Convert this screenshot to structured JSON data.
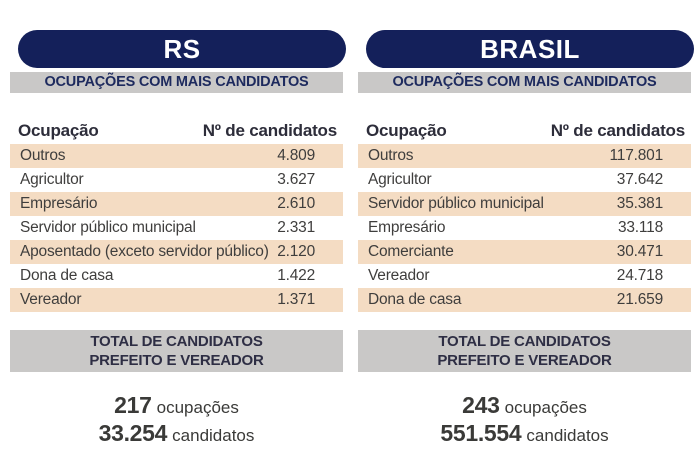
{
  "colors": {
    "navy": "#14205a",
    "bar_gray": "#c9c8c7",
    "stripe_peach": "#f4dcc3",
    "bar_text_navy": "#1d2a5e",
    "text_dark": "#3f3e3d"
  },
  "columns": [
    {
      "region": "RS",
      "section_title": "OCUPAÇÕES COM MAIS CANDIDATOS",
      "table": {
        "header_occupation": "Ocupação",
        "header_count": "Nº de candidatos",
        "rows": [
          {
            "occupation": "Outros",
            "candidates": "4.809"
          },
          {
            "occupation": "Agricultor",
            "candidates": "3.627"
          },
          {
            "occupation": "Empresário",
            "candidates": "2.610"
          },
          {
            "occupation": "Servidor público municipal",
            "candidates": "2.331"
          },
          {
            "occupation": "Aposentado (exceto servidor público)",
            "candidates": "2.120"
          },
          {
            "occupation": "Dona de casa",
            "candidates": "1.422"
          },
          {
            "occupation": "Vereador",
            "candidates": "1.371"
          }
        ]
      },
      "total_box": {
        "line1": "TOTAL DE CANDIDATOS",
        "line2": "PREFEITO E VEREADOR"
      },
      "summary": {
        "occupations_value": "217",
        "occupations_label": "ocupações",
        "candidates_value": "33.254",
        "candidates_label": "candidatos"
      }
    },
    {
      "region": "BRASIL",
      "section_title": "OCUPAÇÕES COM MAIS CANDIDATOS",
      "table": {
        "header_occupation": "Ocupação",
        "header_count": "Nº de candidatos",
        "rows": [
          {
            "occupation": "Outros",
            "candidates": "117.801"
          },
          {
            "occupation": "Agricultor",
            "candidates": "37.642"
          },
          {
            "occupation": "Servidor público municipal",
            "candidates": "35.381"
          },
          {
            "occupation": "Empresário",
            "candidates": "33.118"
          },
          {
            "occupation": "Comerciante",
            "candidates": "30.471"
          },
          {
            "occupation": "Vereador",
            "candidates": "24.718"
          },
          {
            "occupation": "Dona de casa",
            "candidates": "21.659"
          }
        ]
      },
      "total_box": {
        "line1": "TOTAL DE CANDIDATOS",
        "line2": "PREFEITO E VEREADOR"
      },
      "summary": {
        "occupations_value": "243",
        "occupations_label": "ocupações",
        "candidates_value": "551.554",
        "candidates_label": "candidatos"
      }
    }
  ],
  "chart_data": [
    {
      "type": "table",
      "title": "RS — Ocupações com mais candidatos",
      "columns": [
        "Ocupação",
        "Nº de candidatos"
      ],
      "rows": [
        [
          "Outros",
          4809
        ],
        [
          "Agricultor",
          3627
        ],
        [
          "Empresário",
          2610
        ],
        [
          "Servidor público municipal",
          2331
        ],
        [
          "Aposentado (exceto servidor público)",
          2120
        ],
        [
          "Dona de casa",
          1422
        ],
        [
          "Vereador",
          1371
        ]
      ],
      "totals": {
        "ocupacoes": 217,
        "candidatos": 33254,
        "note": "Total de candidatos prefeito e vereador"
      }
    },
    {
      "type": "table",
      "title": "Brasil — Ocupações com mais candidatos",
      "columns": [
        "Ocupação",
        "Nº de candidatos"
      ],
      "rows": [
        [
          "Outros",
          117801
        ],
        [
          "Agricultor",
          37642
        ],
        [
          "Servidor público municipal",
          35381
        ],
        [
          "Empresário",
          33118
        ],
        [
          "Comerciante",
          30471
        ],
        [
          "Vereador",
          24718
        ],
        [
          "Dona de casa",
          21659
        ]
      ],
      "totals": {
        "ocupacoes": 243,
        "candidatos": 551554,
        "note": "Total de candidatos prefeito e vereador"
      }
    }
  ]
}
